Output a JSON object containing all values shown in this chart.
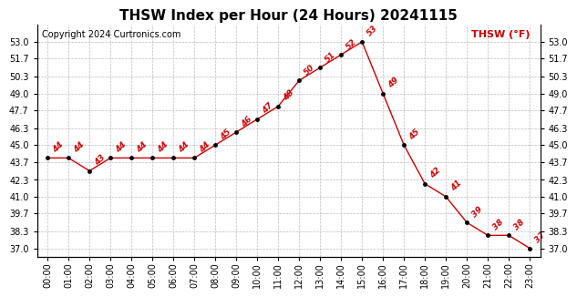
{
  "title": "THSW Index per Hour (24 Hours) 20241115",
  "copyright": "Copyright 2024 Curtronics.com",
  "legend_label": "THSW (°F)",
  "hours": [
    0,
    1,
    2,
    3,
    4,
    5,
    6,
    7,
    8,
    9,
    10,
    11,
    12,
    13,
    14,
    15,
    16,
    17,
    18,
    19,
    20,
    21,
    22,
    23
  ],
  "values": [
    44,
    44,
    43,
    44,
    44,
    44,
    44,
    44,
    45,
    46,
    47,
    48,
    50,
    51,
    52,
    53,
    49,
    45,
    42,
    41,
    39,
    38,
    38,
    37
  ],
  "yticks": [
    37.0,
    38.3,
    39.7,
    41.0,
    42.3,
    43.7,
    45.0,
    46.3,
    47.7,
    49.0,
    50.3,
    51.7,
    53.0
  ],
  "ymin": 36.3,
  "ymax": 54.3,
  "line_color": "#cc0000",
  "marker_color": "#000000",
  "label_color": "#cc0000",
  "title_fontsize": 11,
  "copyright_fontsize": 7,
  "legend_fontsize": 8,
  "tick_label_fontsize": 7,
  "data_label_fontsize": 6.5,
  "background_color": "#ffffff",
  "grid_color": "#bbbbbb"
}
